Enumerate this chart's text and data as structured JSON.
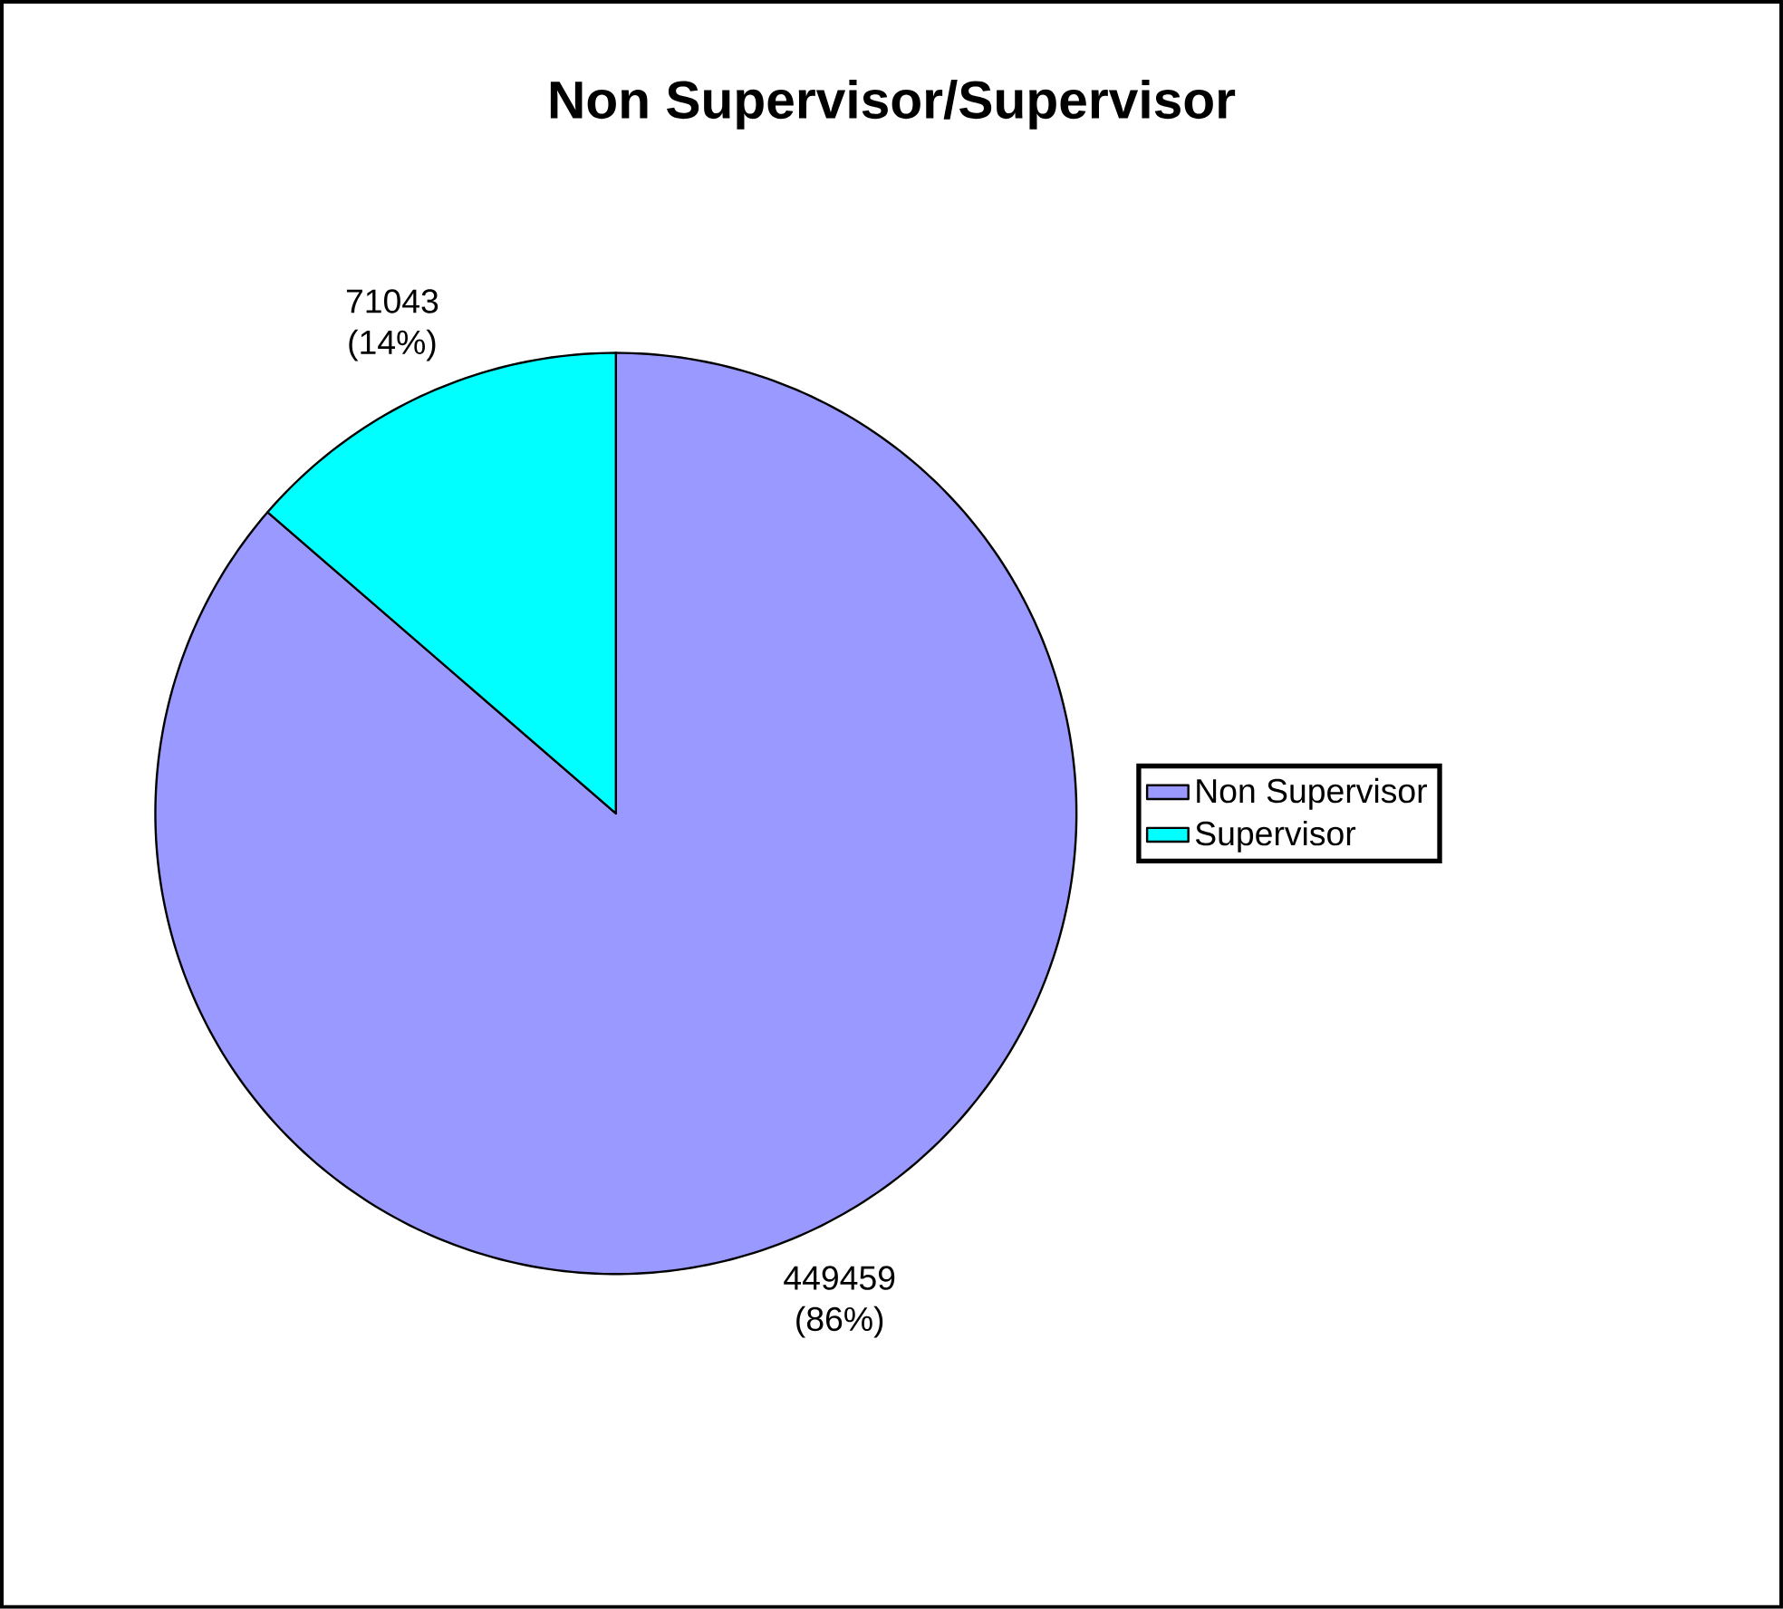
{
  "chart_data": {
    "type": "pie",
    "title": "Non Supervisor/Supervisor",
    "categories": [
      "Non Supervisor",
      "Supervisor"
    ],
    "values": [
      449459,
      71043
    ],
    "colors": [
      "#9999ff",
      "#00ffff"
    ],
    "value_labels": [
      "449459 (86%)",
      "71043 (14%)"
    ],
    "legend": "right"
  }
}
